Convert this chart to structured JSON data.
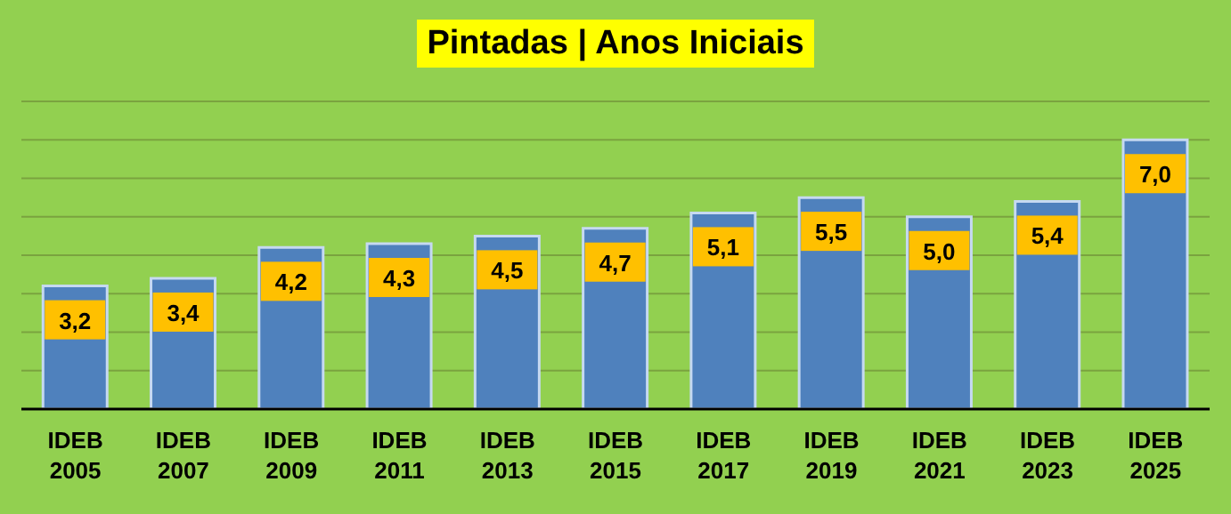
{
  "chart_data": {
    "type": "bar",
    "title": "Pintadas | Anos Iniciais",
    "categories": [
      "IDEB 2005",
      "IDEB 2007",
      "IDEB 2009",
      "IDEB 2011",
      "IDEB 2013",
      "IDEB 2015",
      "IDEB 2017",
      "IDEB 2019",
      "IDEB 2021",
      "IDEB 2023",
      "IDEB 2025"
    ],
    "values": [
      3.2,
      3.4,
      4.2,
      4.3,
      4.5,
      4.7,
      5.1,
      5.5,
      5.0,
      5.4,
      7.0
    ],
    "value_labels": [
      "3,2",
      "3,4",
      "4,2",
      "4,3",
      "4,5",
      "4,7",
      "5,1",
      "5,5",
      "5,0",
      "5,4",
      "7,0"
    ],
    "color": "#4f81bd",
    "ylim": [
      0,
      8
    ],
    "yticks": [
      {
        "value": 0,
        "label": null
      },
      {
        "value": 1,
        "label": null
      },
      {
        "value": 2,
        "label": null
      },
      {
        "value": 3,
        "label": null
      },
      {
        "value": 4,
        "label": null
      },
      {
        "value": 5,
        "label": null
      },
      {
        "value": 6,
        "label": null
      },
      {
        "value": 7,
        "label": null
      },
      {
        "value": 8,
        "label": null
      }
    ],
    "grid": "y",
    "tick_labels": "x",
    "legend": false
  }
}
